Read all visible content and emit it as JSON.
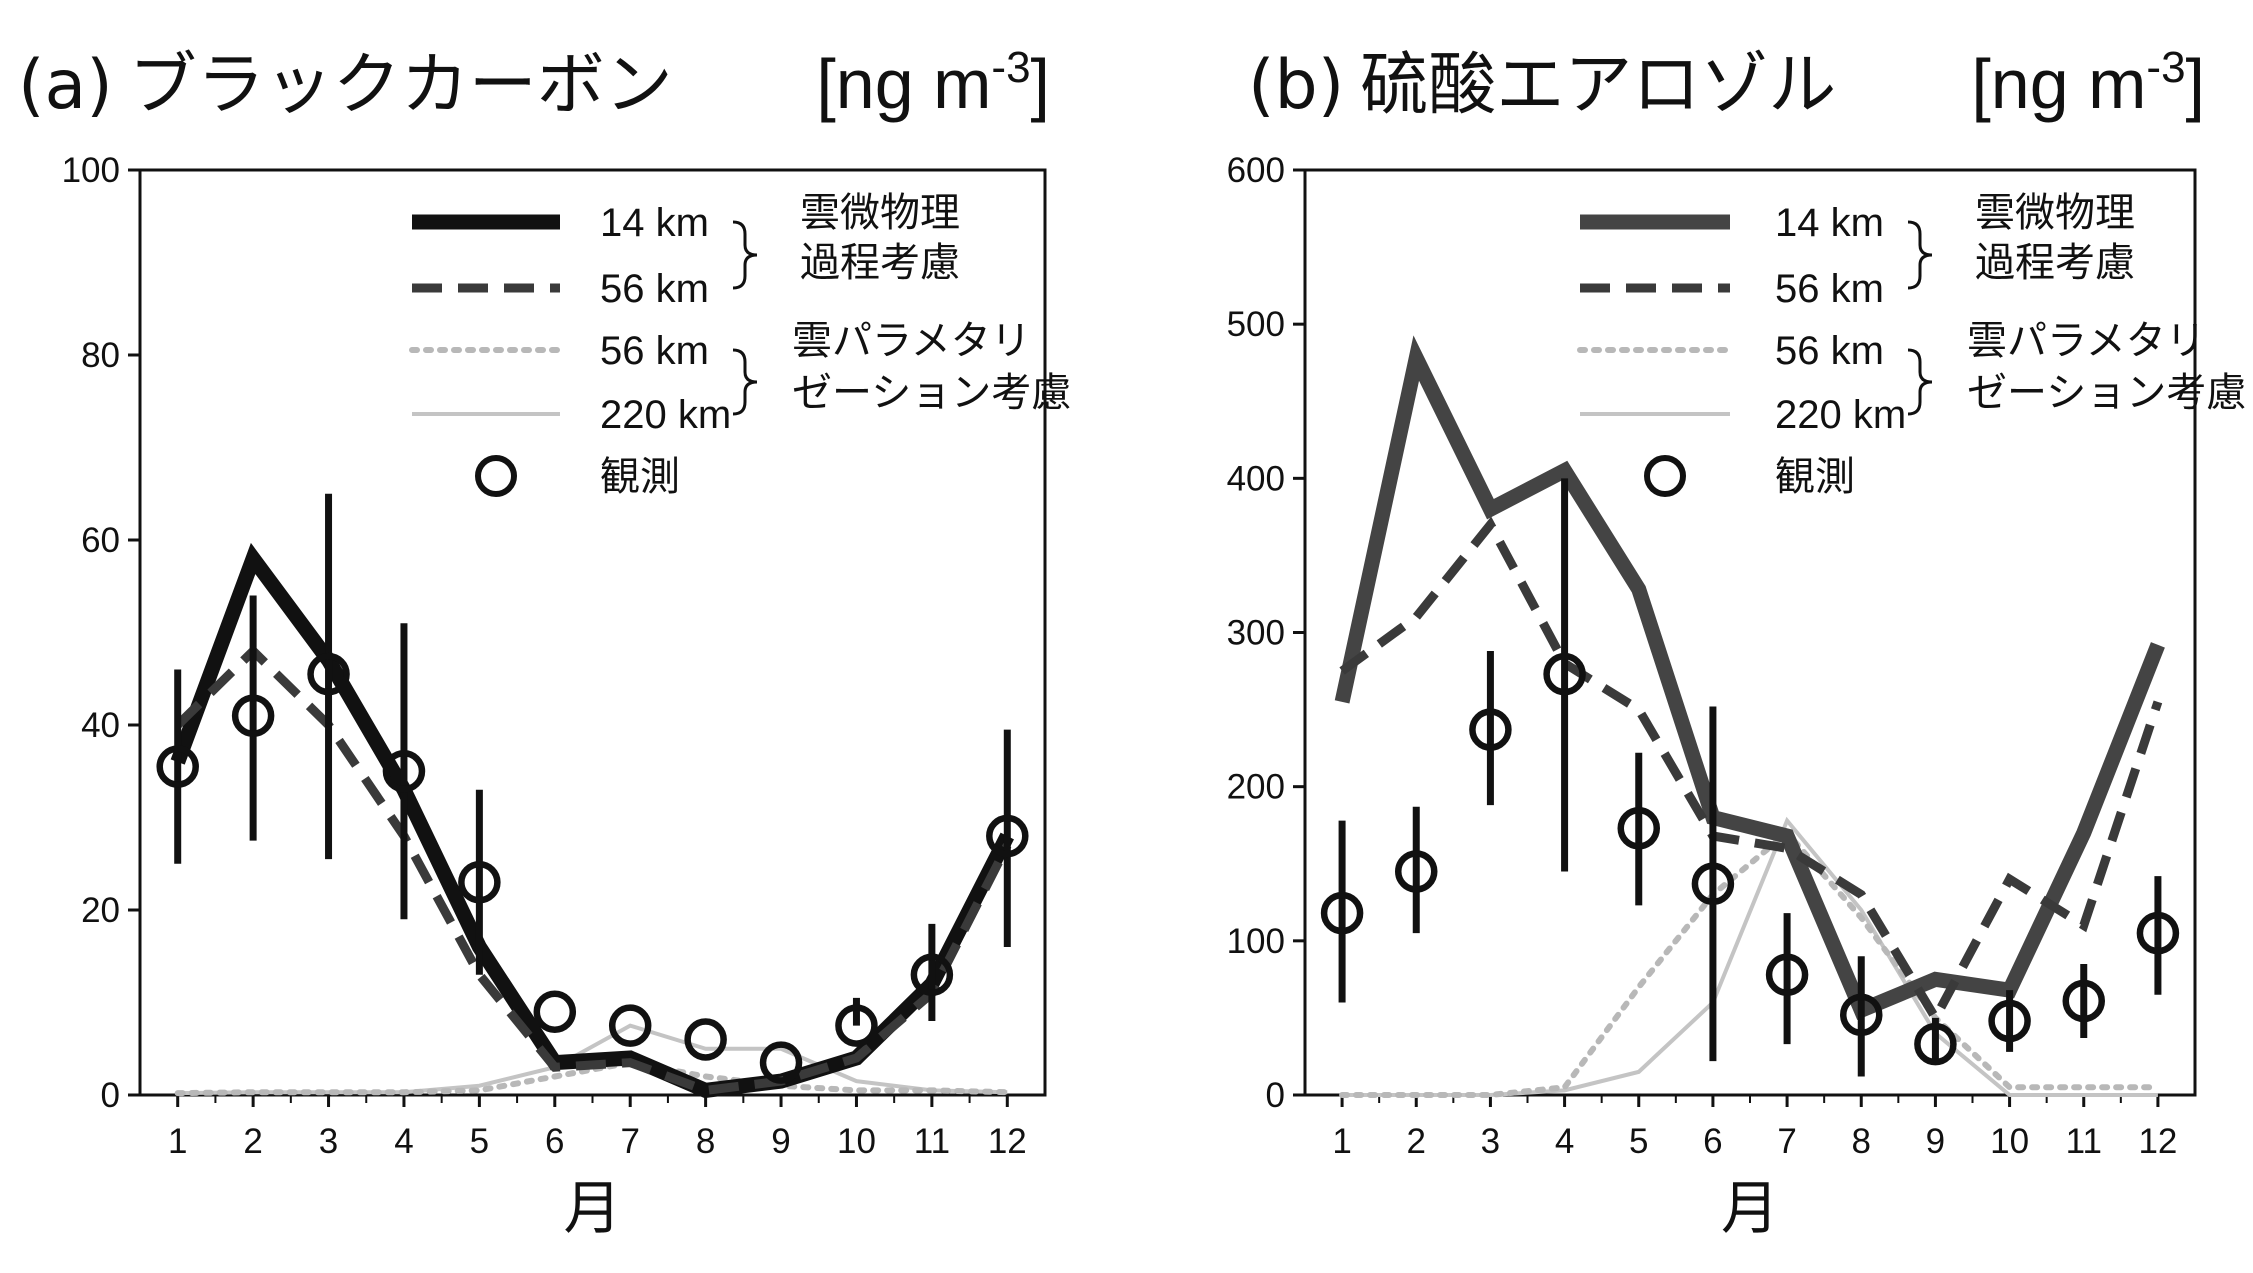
{
  "chart_data": [
    {
      "type": "line",
      "panel_label": "(a)",
      "title": "ブラックカーボン",
      "unit": "[ng m",
      "unit_exp": "-3",
      "unit_close": "]",
      "xlabel": "月",
      "ylabel": "",
      "x": [
        1,
        2,
        3,
        4,
        5,
        6,
        7,
        8,
        9,
        10,
        11,
        12
      ],
      "xticks": [
        "1",
        "2",
        "3",
        "4",
        "5",
        "6",
        "7",
        "8",
        "9",
        "10",
        "11",
        "12"
      ],
      "ylim": [
        0,
        100
      ],
      "yticks": [
        "0",
        "20",
        "40",
        "60",
        "80",
        "100"
      ],
      "ytick_values": [
        0,
        20,
        40,
        60,
        80,
        100
      ],
      "series": [
        {
          "name": "14 km",
          "style": "thick-solid",
          "color": "#111111",
          "values": [
            36,
            58,
            47,
            33,
            16,
            3.5,
            4,
            0.5,
            1.5,
            4,
            12,
            28
          ]
        },
        {
          "name": "56 km",
          "style": "thick-dashed",
          "color": "#3a3a3a",
          "values": [
            40,
            48,
            40,
            28,
            13,
            3,
            3.5,
            0.5,
            1.5,
            4,
            11,
            27
          ]
        },
        {
          "name": "56 km",
          "style": "dotted",
          "color": "#b8b8b8",
          "values": [
            0.2,
            0.3,
            0.3,
            0.3,
            0.5,
            2,
            3.5,
            2,
            1,
            0.5,
            0.5,
            0.3
          ]
        },
        {
          "name": "220 km",
          "style": "thin-solid",
          "color": "#c4c4c4",
          "values": [
            0.2,
            0.3,
            0.3,
            0.3,
            1,
            3,
            7.5,
            5,
            5,
            1.5,
            0.5,
            0.3
          ]
        }
      ],
      "observations": {
        "name": "観測",
        "values": [
          35.5,
          41,
          45.5,
          35,
          23,
          9,
          7.5,
          6,
          3.5,
          7.5,
          13,
          28
        ],
        "err_low": [
          25,
          27.5,
          25.5,
          19,
          13,
          null,
          null,
          null,
          null,
          null,
          8,
          16
        ],
        "err_high": [
          46,
          54,
          65,
          51,
          33,
          null,
          null,
          null,
          null,
          10.5,
          18.5,
          39.5
        ]
      },
      "legend": {
        "bracket1": "雲微物理\n過程考慮",
        "bracket2": "雲パラメタリ\nゼーション考慮"
      }
    },
    {
      "type": "line",
      "panel_label": "(b)",
      "title": "硫酸エアロゾル",
      "unit": "[ng m",
      "unit_exp": "-3",
      "unit_close": "]",
      "xlabel": "月",
      "ylabel": "",
      "x": [
        1,
        2,
        3,
        4,
        5,
        6,
        7,
        8,
        9,
        10,
        11,
        12
      ],
      "xticks": [
        "1",
        "2",
        "3",
        "4",
        "5",
        "6",
        "7",
        "8",
        "9",
        "10",
        "11",
        "12"
      ],
      "ylim": [
        0,
        600
      ],
      "yticks": [
        "0",
        "100",
        "200",
        "300",
        "400",
        "500",
        "600"
      ],
      "ytick_values": [
        0,
        100,
        200,
        300,
        400,
        500,
        600
      ],
      "series": [
        {
          "name": "14 km",
          "style": "thick-solid",
          "color": "#444444",
          "values": [
            255,
            478,
            380,
            405,
            328,
            180,
            168,
            55,
            75,
            68,
            170,
            292
          ]
        },
        {
          "name": "56 km",
          "style": "thick-dashed",
          "color": "#3a3a3a",
          "values": [
            275,
            310,
            370,
            280,
            250,
            168,
            160,
            130,
            50,
            140,
            110,
            255
          ]
        },
        {
          "name": "56 km",
          "style": "dotted",
          "color": "#b8b8b8",
          "values": [
            0,
            0,
            0,
            5,
            70,
            130,
            170,
            115,
            50,
            5,
            5,
            5
          ]
        },
        {
          "name": "220 km",
          "style": "thin-solid",
          "color": "#c4c4c4",
          "values": [
            0,
            0,
            0,
            3,
            15,
            60,
            178,
            120,
            40,
            0,
            0,
            0
          ]
        }
      ],
      "observations": {
        "name": "観測",
        "values": [
          118,
          145,
          237,
          273,
          173,
          137,
          78,
          52,
          33,
          48,
          61,
          105
        ],
        "err_low": [
          60,
          105,
          188,
          145,
          123,
          22,
          33,
          12,
          22,
          28,
          37,
          65
        ],
        "err_high": [
          178,
          187,
          288,
          400,
          222,
          252,
          118,
          90,
          50,
          68,
          85,
          142
        ]
      },
      "legend": {
        "bracket1": "雲微物理\n過程考慮",
        "bracket2": "雲パラメタリ\nゼーション考慮"
      }
    }
  ]
}
